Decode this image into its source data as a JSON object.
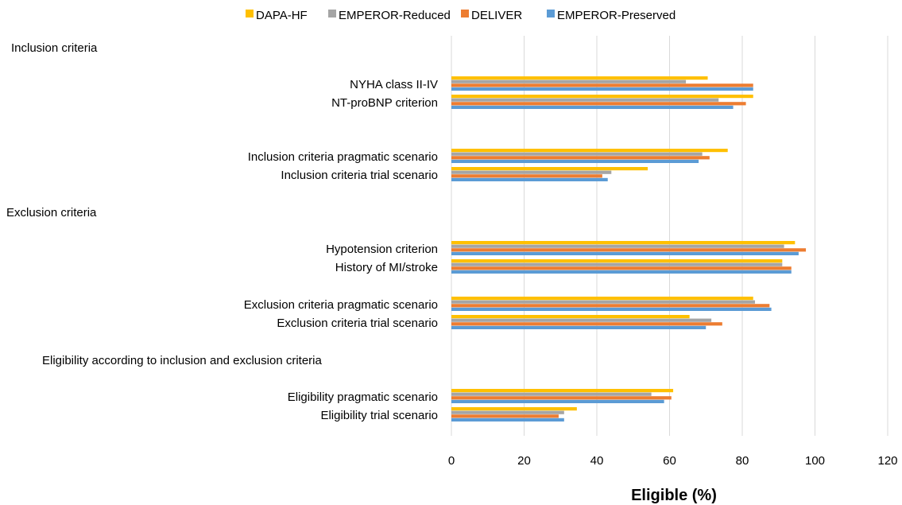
{
  "colors": {
    "DAPA-HF": "#ffc000",
    "EMPEROR-Reduced": "#a5a5a5",
    "DELIVER": "#ed7d31",
    "EMPEROR-Preserved": "#5b9bd5",
    "grid": "#d9d9d9"
  },
  "chart_data": {
    "type": "bar",
    "orientation": "horizontal",
    "title": "",
    "xlabel": "Eligible (%)",
    "ylabel": "",
    "xlim": [
      0,
      120
    ],
    "xticks": [
      0,
      20,
      40,
      60,
      80,
      100,
      120
    ],
    "grid": true,
    "legend_position": "top",
    "series_names": [
      "DAPA-HF",
      "EMPEROR-Reduced",
      "DELIVER",
      "EMPEROR-Preserved"
    ],
    "sections": [
      "Inclusion criteria",
      "Exclusion criteria",
      "Eligibility according to inclusion and exclusion criteria"
    ],
    "categories": [
      {
        "label": "NYHA class II-IV",
        "values": [
          70.5,
          64.5,
          83,
          83
        ]
      },
      {
        "label": "NT-proBNP criterion",
        "values": [
          83,
          73.5,
          81,
          77.5
        ]
      },
      {
        "label": "Inclusion criteria pragmatic scenario ",
        "values": [
          76,
          69,
          71,
          68
        ]
      },
      {
        "label": "Inclusion criteria trial scenario",
        "values": [
          54,
          44,
          41.5,
          43
        ]
      },
      {
        "label": "Hypotension criterion",
        "values": [
          94.5,
          91.5,
          97.5,
          95.5
        ]
      },
      {
        "label": "History of MI/stroke",
        "values": [
          91,
          91,
          93.5,
          93.5
        ]
      },
      {
        "label": "Exclusion criteria  pragmatic scenario",
        "values": [
          83,
          83.5,
          87.5,
          88
        ]
      },
      {
        "label": "Exclusion criteria trial scenario",
        "values": [
          65.5,
          71.5,
          74.5,
          70
        ]
      },
      {
        "label": "Eligibility pragmatic scenario",
        "values": [
          61,
          55,
          60.5,
          58.5
        ]
      },
      {
        "label": "Eligibility trial scenario",
        "values": [
          34.5,
          31,
          29.5,
          31
        ]
      }
    ]
  }
}
